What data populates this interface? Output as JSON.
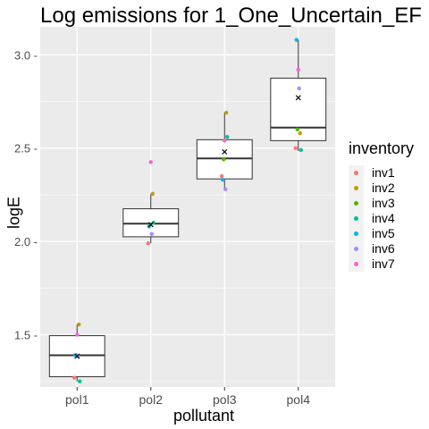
{
  "chart_data": {
    "type": "box",
    "title": "Log emissions for 1_One_Uncertain_EF",
    "xlabel": "pollutant",
    "ylabel": "logE",
    "categories": [
      "pol1",
      "pol2",
      "pol3",
      "pol4"
    ],
    "ylim": [
      1.22,
      3.15
    ],
    "yticks": [
      1.5,
      2.0,
      2.5,
      3.0
    ],
    "ytick_labels": [
      "1.5 -",
      "2.0 -",
      "2.5 -",
      "3.0 -"
    ],
    "grid": true,
    "legend_placement": "right",
    "legend_title": "inventory",
    "boxes": [
      {
        "category": "pol1",
        "q1": 1.275,
        "median": 1.39,
        "q3": 1.495,
        "whisker_low": 1.25,
        "whisker_high": 1.555,
        "mean": 1.385
      },
      {
        "category": "pol2",
        "q1": 2.025,
        "median": 2.095,
        "q3": 2.175,
        "whisker_low": 1.99,
        "whisker_high": 2.255,
        "mean": 2.09
      },
      {
        "category": "pol3",
        "q1": 2.335,
        "median": 2.445,
        "q3": 2.545,
        "whisker_low": 2.275,
        "whisker_high": 2.69,
        "mean": 2.48
      },
      {
        "category": "pol4",
        "q1": 2.54,
        "median": 2.61,
        "q3": 2.875,
        "whisker_low": 2.485,
        "whisker_high": 3.08,
        "mean": 2.77
      }
    ],
    "series": [
      {
        "name": "inv1",
        "color": "#F8766D",
        "values": [
          1.27,
          1.99,
          2.35,
          2.5
        ]
      },
      {
        "name": "inv2",
        "color": "#C49A00",
        "values": [
          1.555,
          2.255,
          2.69,
          2.58
        ]
      },
      {
        "name": "inv3",
        "color": "#53B400",
        "values": [
          1.39,
          2.09,
          2.44,
          2.6
        ]
      },
      {
        "name": "inv4",
        "color": "#00C094",
        "values": [
          1.25,
          2.1,
          2.56,
          2.49
        ]
      },
      {
        "name": "inv5",
        "color": "#00B6EB",
        "values": [
          1.39,
          2.08,
          2.33,
          3.08
        ]
      },
      {
        "name": "inv6",
        "color": "#A58AFF",
        "values": [
          1.385,
          2.04,
          2.28,
          2.82
        ]
      },
      {
        "name": "inv7",
        "color": "#FB61D7",
        "values": [
          1.5,
          2.425,
          2.54,
          2.92
        ]
      }
    ]
  }
}
